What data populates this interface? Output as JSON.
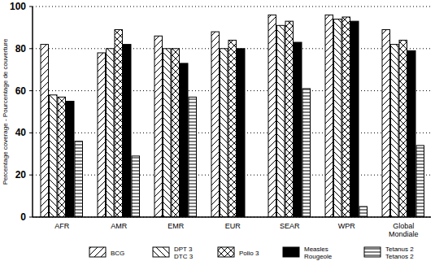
{
  "chart_data": {
    "type": "bar",
    "y_label": "Percentage coverage - Pourcentage de couverture",
    "categories": [
      "AFR",
      "AMR",
      "EMR",
      "EUR",
      "SEAR",
      "WPR",
      "Global\nMondiale"
    ],
    "series": [
      {
        "name": "BCG",
        "color": "#ffffff",
        "values": [
          82,
          78,
          86,
          88,
          96,
          96,
          89
        ]
      },
      {
        "name": "DPT 3\nDTC 3",
        "color": "#ffffff",
        "values": [
          58,
          80,
          80,
          80,
          91,
          94,
          82
        ]
      },
      {
        "name": "Polio 3",
        "color": "#ffffff",
        "values": [
          57,
          89,
          80,
          84,
          93,
          95,
          84
        ]
      },
      {
        "name": "Measles\nRougeole",
        "color": "#000000",
        "values": [
          55,
          82,
          73,
          80,
          83,
          93,
          79
        ]
      },
      {
        "name": "Tetanus 2\nTetanos 2",
        "color": "#ffffff",
        "values": [
          36,
          29,
          57,
          null,
          61,
          5,
          34
        ]
      }
    ],
    "ylim": [
      0,
      100
    ],
    "yticks": [
      0,
      20,
      40,
      60,
      80,
      100
    ],
    "grid": true,
    "legend": "bottom"
  }
}
